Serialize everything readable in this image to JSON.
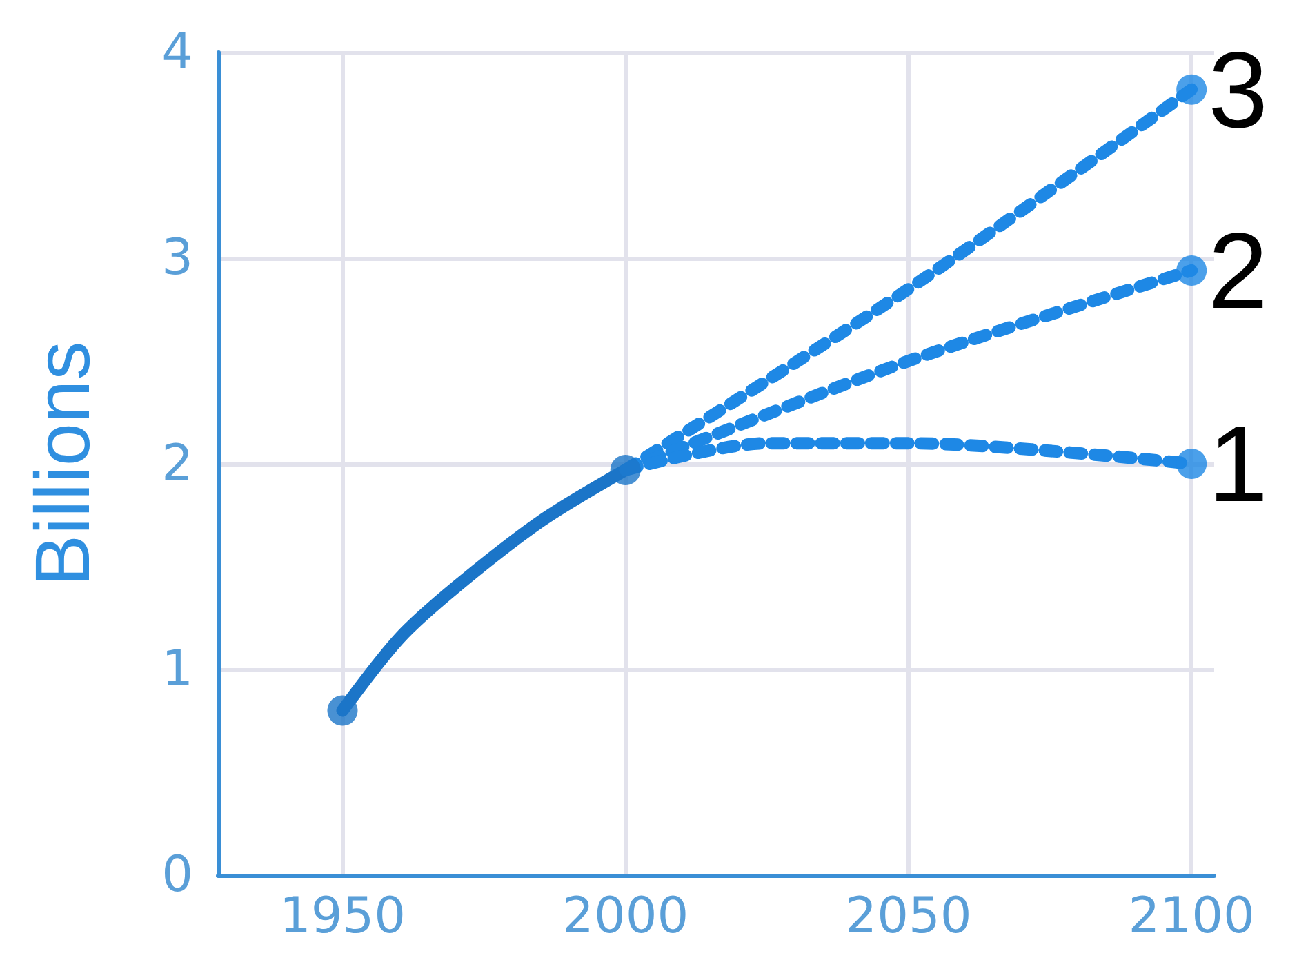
{
  "chart_data": {
    "type": "line",
    "ylabel": "Billions",
    "xlim": [
      1928,
      2104
    ],
    "xticks": [
      1950,
      2000,
      2050,
      2100
    ],
    "ylim": [
      0,
      4
    ],
    "yticks": [
      0,
      1,
      2,
      3,
      4
    ],
    "grid": true,
    "legend": false,
    "marker": "none",
    "series": [
      {
        "color": "#1b75c8",
        "x": [
          1950,
          1960,
          1970,
          1985,
          2000
        ],
        "values": [
          0.8,
          1.15,
          1.4,
          1.72,
          1.97
        ],
        "line_style": "solid"
      },
      {
        "name": "3",
        "color": "#1e88e5",
        "x": [
          2000,
          2050,
          2100
        ],
        "values": [
          1.97,
          2.85,
          3.82
        ],
        "line_style": "dotted"
      },
      {
        "name": "2",
        "color": "#1e88e5",
        "x": [
          2000,
          2050,
          2100
        ],
        "values": [
          1.97,
          2.5,
          2.94
        ],
        "line_style": "dotted"
      },
      {
        "name": "1",
        "color": "#1e88e5",
        "x": [
          2000,
          2025,
          2050,
          2100
        ],
        "values": [
          1.97,
          2.1,
          2.1,
          2.0
        ],
        "line_style": "dotted"
      },
      {
        "type": "scatter",
        "marker": "circle",
        "color": "#1b75c8",
        "x": [
          1950,
          2000
        ],
        "values": [
          0.8,
          1.97
        ]
      },
      {
        "type": "scatter",
        "marker": "circle",
        "color": "#1e88e5",
        "x": [
          2100,
          2100,
          2100
        ],
        "values": [
          3.82,
          2.94,
          2.0
        ]
      }
    ]
  }
}
